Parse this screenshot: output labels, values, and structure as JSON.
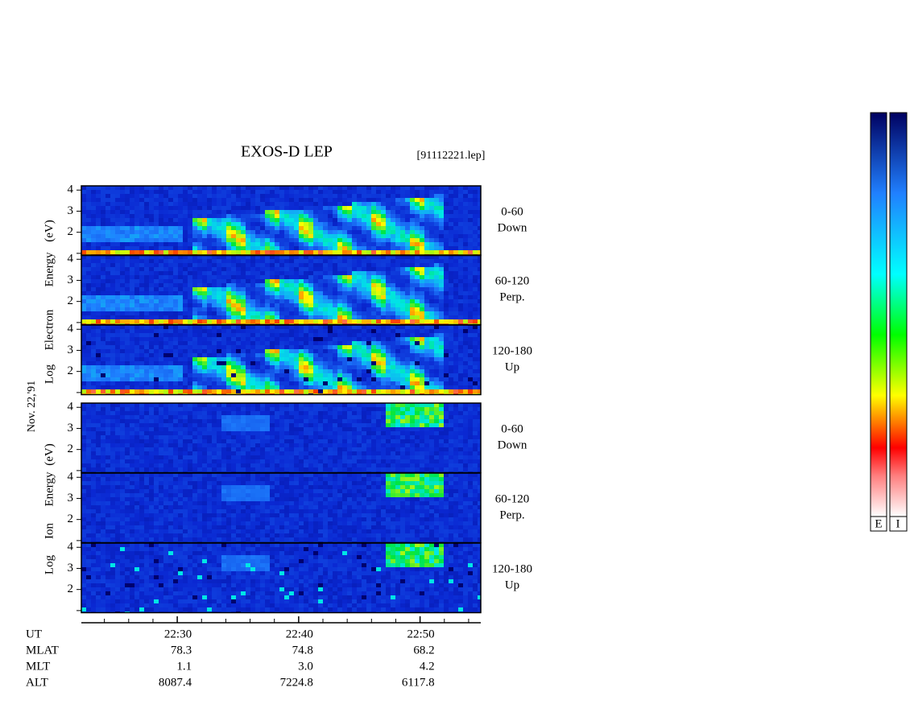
{
  "header": {
    "title": "EXOS-D LEP",
    "file": "[91112221.lep]",
    "date": "Nov. 22,'91"
  },
  "electron_axis_label": [
    "Log",
    "Electron",
    "Energy",
    "(eV)"
  ],
  "ion_axis_label": [
    "Log",
    "Ion",
    "Energy",
    "(eV)"
  ],
  "ylim": [
    0.9,
    4.2
  ],
  "yticks": [
    {
      "value": 1,
      "label": null
    },
    2,
    3,
    4
  ],
  "panels": [
    {
      "species": "electron",
      "angle": "0-60",
      "direction": "Down"
    },
    {
      "species": "electron",
      "angle": "60-120",
      "direction": "Perp."
    },
    {
      "species": "electron",
      "angle": "120-180",
      "direction": "Up"
    },
    {
      "species": "ion",
      "angle": "0-60",
      "direction": "Down"
    },
    {
      "species": "ion",
      "angle": "60-120",
      "direction": "Perp."
    },
    {
      "species": "ion",
      "angle": "120-180",
      "direction": "Up"
    }
  ],
  "xlim": [
    1342.1,
    1375.0
  ],
  "xticks": [
    {
      "value": 1350,
      "label": "22:30"
    },
    {
      "value": 1360,
      "label": "22:40"
    },
    {
      "value": 1370,
      "label": "22:50"
    }
  ],
  "xminorticks": [
    1344,
    1346,
    1348,
    1352,
    1354,
    1356,
    1358,
    1362,
    1364,
    1366,
    1368,
    1372,
    1374
  ],
  "ephemeris": {
    "labels": [
      "UT",
      "MLAT",
      "MLT",
      "ALT"
    ],
    "rows": [
      [
        "78.3",
        "74.8",
        "68.2"
      ],
      [
        "1.1",
        "3.0",
        "4.2"
      ],
      [
        "8087.4",
        "7224.8",
        "6117.8"
      ]
    ]
  },
  "colorbar_labels": [
    "E",
    "I"
  ]
}
